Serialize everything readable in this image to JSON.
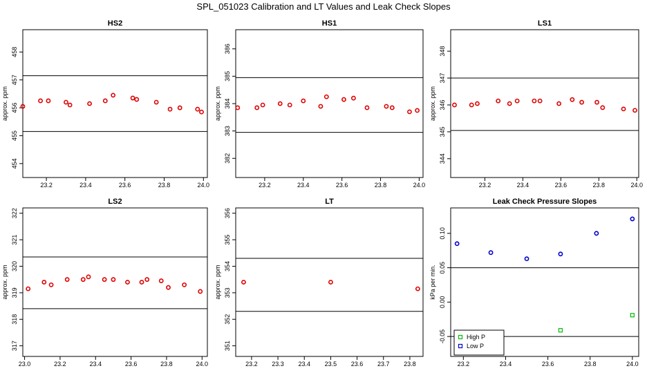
{
  "page": {
    "main_title": "SPL_051023  Calibration and LT Values and Leak Check Slopes"
  },
  "chart_data": [
    {
      "id": "hs2",
      "type": "scatter",
      "title": "HS2",
      "ylabel": "approx. ppm",
      "xlim": [
        23.08,
        24.02
      ],
      "ylim": [
        453.5,
        458.8
      ],
      "xticks": [
        23.2,
        23.4,
        23.6,
        23.8,
        24.0
      ],
      "xticklabels": [
        "23.2",
        "23.4",
        "23.6",
        "23.8",
        "24.0"
      ],
      "yticks": [
        454,
        455,
        456,
        457,
        458
      ],
      "yticklabels": [
        "454",
        "455",
        "456",
        "457",
        "458"
      ],
      "hlines": [
        457.15,
        455.15
      ],
      "series": [
        {
          "color": "#dd0000",
          "marker": "circle",
          "x": [
            23.08,
            23.17,
            23.21,
            23.3,
            23.32,
            23.42,
            23.5,
            23.54,
            23.64,
            23.66,
            23.76,
            23.83,
            23.88,
            23.97,
            23.99
          ],
          "y": [
            456.05,
            456.25,
            456.25,
            456.2,
            456.1,
            456.15,
            456.25,
            456.45,
            456.35,
            456.3,
            456.2,
            455.95,
            456.0,
            455.95,
            455.85
          ]
        }
      ]
    },
    {
      "id": "hs1",
      "type": "scatter",
      "title": "HS1",
      "ylabel": "approx. ppm",
      "xlim": [
        23.05,
        24.02
      ],
      "ylim": [
        381.3,
        386.7
      ],
      "xticks": [
        23.2,
        23.4,
        23.6,
        23.8,
        24.0
      ],
      "xticklabels": [
        "23.2",
        "23.4",
        "23.6",
        "23.8",
        "24.0"
      ],
      "yticks": [
        382,
        383,
        384,
        385,
        386
      ],
      "yticklabels": [
        "382",
        "383",
        "384",
        "385",
        "386"
      ],
      "hlines": [
        384.95,
        382.95
      ],
      "series": [
        {
          "color": "#dd0000",
          "marker": "circle",
          "x": [
            23.06,
            23.16,
            23.19,
            23.28,
            23.33,
            23.4,
            23.49,
            23.52,
            23.61,
            23.66,
            23.73,
            23.83,
            23.86,
            23.95,
            23.99
          ],
          "y": [
            383.85,
            383.85,
            383.95,
            384.0,
            383.95,
            384.1,
            383.9,
            384.25,
            384.15,
            384.2,
            383.85,
            383.9,
            383.85,
            383.7,
            383.75
          ]
        }
      ]
    },
    {
      "id": "ls1",
      "type": "scatter",
      "title": "LS1",
      "ylabel": "approx. ppm",
      "xlim": [
        23.02,
        24.01
      ],
      "ylim": [
        343.3,
        348.8
      ],
      "xticks": [
        23.2,
        23.4,
        23.6,
        23.8,
        24.0
      ],
      "xticklabels": [
        "23.2",
        "23.4",
        "23.6",
        "23.8",
        "24.0"
      ],
      "yticks": [
        344,
        345,
        346,
        347,
        348
      ],
      "yticklabels": [
        "344",
        "345",
        "346",
        "347",
        "348"
      ],
      "hlines": [
        347.0,
        345.05
      ],
      "series": [
        {
          "color": "#dd0000",
          "marker": "circle",
          "x": [
            23.04,
            23.13,
            23.16,
            23.27,
            23.33,
            23.37,
            23.46,
            23.49,
            23.59,
            23.66,
            23.71,
            23.79,
            23.82,
            23.93,
            23.99
          ],
          "y": [
            346.0,
            346.0,
            346.05,
            346.15,
            346.05,
            346.15,
            346.15,
            346.15,
            346.05,
            346.2,
            346.1,
            346.1,
            345.9,
            345.85,
            345.8
          ]
        }
      ]
    },
    {
      "id": "ls2",
      "type": "scatter",
      "title": "LS2",
      "ylabel": "approx. ppm",
      "xlim": [
        22.99,
        24.03
      ],
      "ylim": [
        316.6,
        322.2
      ],
      "xticks": [
        23.0,
        23.2,
        23.4,
        23.6,
        23.8,
        24.0
      ],
      "xticklabels": [
        "23.0",
        "23.2",
        "23.4",
        "23.6",
        "23.8",
        "24.0"
      ],
      "yticks": [
        317,
        318,
        319,
        320,
        321,
        322
      ],
      "yticklabels": [
        "317",
        "318",
        "319",
        "320",
        "321",
        "322"
      ],
      "hlines": [
        320.35,
        318.4
      ],
      "series": [
        {
          "color": "#dd0000",
          "marker": "circle",
          "x": [
            23.02,
            23.11,
            23.15,
            23.24,
            23.33,
            23.36,
            23.45,
            23.5,
            23.58,
            23.66,
            23.69,
            23.77,
            23.81,
            23.9,
            23.99
          ],
          "y": [
            319.15,
            319.4,
            319.3,
            319.5,
            319.5,
            319.6,
            319.5,
            319.5,
            319.4,
            319.4,
            319.5,
            319.45,
            319.2,
            319.3,
            319.05
          ]
        }
      ]
    },
    {
      "id": "lt",
      "type": "scatter",
      "title": "LT",
      "ylabel": "approx. ppm",
      "xlim": [
        23.14,
        23.85
      ],
      "ylim": [
        350.6,
        356.2
      ],
      "xticks": [
        23.2,
        23.3,
        23.4,
        23.5,
        23.6,
        23.7,
        23.8
      ],
      "xticklabels": [
        "23.2",
        "23.3",
        "23.4",
        "23.5",
        "23.6",
        "23.7",
        "23.8"
      ],
      "yticks": [
        351,
        352,
        353,
        354,
        355,
        356
      ],
      "yticklabels": [
        "351",
        "352",
        "353",
        "354",
        "355",
        "356"
      ],
      "hlines": [
        354.3,
        352.3
      ],
      "series": [
        {
          "color": "#dd0000",
          "marker": "circle",
          "x": [
            23.17,
            23.5,
            23.83
          ],
          "y": [
            353.4,
            353.4,
            353.15
          ]
        }
      ]
    },
    {
      "id": "leak",
      "type": "scatter",
      "title": "Leak Check Pressure Slopes",
      "ylabel": "kPa per min.",
      "xlim": [
        23.14,
        24.03
      ],
      "ylim": [
        -0.079,
        0.137
      ],
      "xticks": [
        23.2,
        23.4,
        23.6,
        23.8,
        24.0
      ],
      "xticklabels": [
        "23.2",
        "23.4",
        "23.6",
        "23.8",
        "24.0"
      ],
      "yticks": [
        -0.05,
        0.0,
        0.05,
        0.1
      ],
      "yticklabels": [
        "-0.05",
        "0.00",
        "0.05",
        "0.10"
      ],
      "hlines": [
        0.05,
        -0.05
      ],
      "legend": {
        "position": "bottom-left"
      },
      "series": [
        {
          "name": "High P",
          "color": "#00bb00",
          "marker": "square",
          "x": [
            23.33,
            23.66,
            24.0
          ],
          "y": [
            -0.048,
            -0.041,
            -0.019
          ]
        },
        {
          "name": "Low P",
          "color": "#0000cc",
          "marker": "circle",
          "x": [
            23.17,
            23.33,
            23.5,
            23.66,
            23.83,
            24.0
          ],
          "y": [
            0.085,
            0.072,
            0.063,
            0.07,
            0.1,
            0.121
          ]
        }
      ]
    }
  ]
}
